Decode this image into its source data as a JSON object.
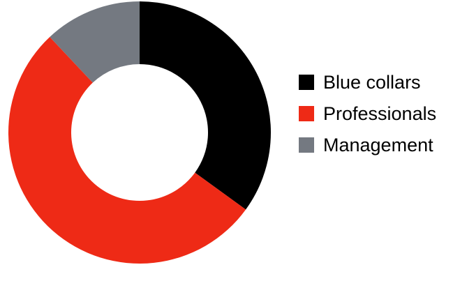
{
  "chart_data": {
    "type": "pie",
    "title": "",
    "donut": true,
    "categories": [
      "Blue collars",
      "Professionals",
      "Management"
    ],
    "values": [
      35,
      53,
      12
    ],
    "colors": [
      "#000000",
      "#ee2a16",
      "#747981"
    ],
    "legend": {
      "position": "right",
      "entries": [
        "Blue collars",
        "Professionals",
        "Management"
      ]
    },
    "start_angle": "12 o'clock",
    "direction": "clockwise"
  }
}
